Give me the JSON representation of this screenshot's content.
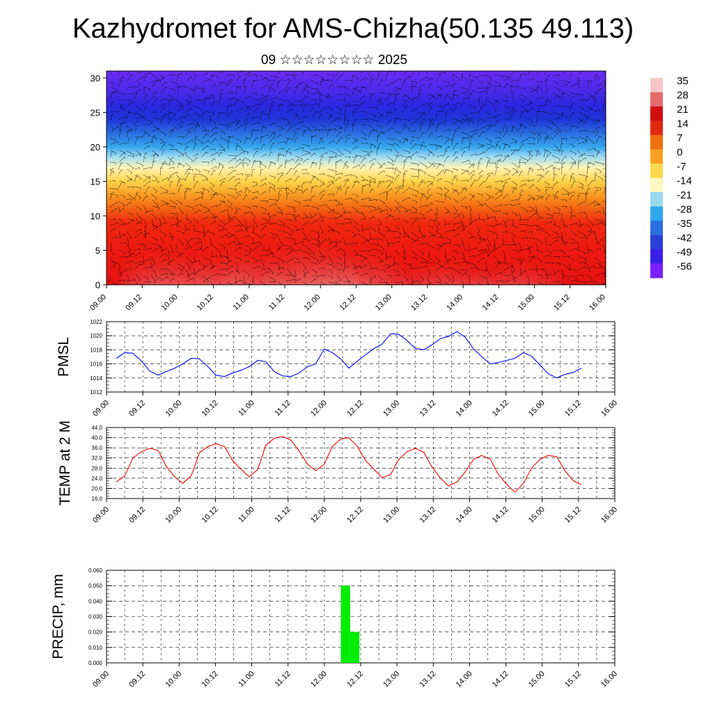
{
  "title": "Kazhydromet for AMS-Chizha(50.135 49.113)",
  "subtitle": "09 ☆☆☆☆☆☆☆☆ 2025",
  "colors": {
    "pmsl": "#0000ff",
    "temp": "#ff0000",
    "precip": "#00ee00",
    "grid": "#000000"
  },
  "chart_data": [
    {
      "type": "heatmap",
      "name": "cross-section",
      "x_tick_labels": [
        "09.00",
        "09.12",
        "10.00",
        "10.12",
        "11.00",
        "11.12",
        "12.00",
        "12.12",
        "13.00",
        "13.12",
        "14.00",
        "14.12",
        "15.00",
        "15.12",
        "16.00"
      ],
      "y_ticks": [
        0,
        5,
        10,
        15,
        20,
        25,
        30
      ],
      "ylim": [
        0,
        31
      ],
      "colorbar_labels": [
        "35",
        "28",
        "21",
        "14",
        "7",
        "0",
        "-7",
        "-14",
        "-21",
        "-28",
        "-35",
        "-42",
        "-49",
        "-56"
      ],
      "colorbar_colors": [
        "#f6c6c6",
        "#e46a6a",
        "#d01010",
        "#e02a10",
        "#f07010",
        "#fba020",
        "#ffd850",
        "#fff6c0",
        "#9ad8f0",
        "#30a8ee",
        "#2a70e0",
        "#2a40d8",
        "#3a20e8",
        "#7a20f8"
      ],
      "vertical_profile": [
        {
          "h": 0,
          "c": "#e61212"
        },
        {
          "h": 5,
          "c": "#ee1a10"
        },
        {
          "h": 9,
          "c": "#f02810"
        },
        {
          "h": 11,
          "c": "#f36212"
        },
        {
          "h": 13,
          "c": "#f89a22"
        },
        {
          "h": 15,
          "c": "#ffd44a"
        },
        {
          "h": 17,
          "c": "#fff3b8"
        },
        {
          "h": 18.5,
          "c": "#a0dcf2"
        },
        {
          "h": 20,
          "c": "#36a6ee"
        },
        {
          "h": 22,
          "c": "#2a6ee0"
        },
        {
          "h": 24,
          "c": "#2034d8"
        },
        {
          "h": 26,
          "c": "#2a28e0"
        },
        {
          "h": 28,
          "c": "#4a2ae8"
        },
        {
          "h": 31,
          "c": "#6a2cf4"
        }
      ],
      "surface_warm_centers_day": [
        0.85,
        1.85,
        2.85,
        3.55,
        4.75,
        5.75
      ],
      "surface_warm_strength": [
        0.8,
        0.85,
        1.0,
        0.8,
        0.6,
        0.55
      ]
    },
    {
      "type": "line",
      "name": "pmsl",
      "ylabel": "PMSL",
      "x_tick_labels": [
        "09.00",
        "09.12",
        "10.00",
        "10.12",
        "11.00",
        "11.12",
        "12.00",
        "12.12",
        "13.00",
        "13.12",
        "14.00",
        "14.12",
        "15.00",
        "15.12",
        "16.00"
      ],
      "y_tick_labels": [
        "1012",
        "1014",
        "1016",
        "1018",
        "1020",
        "1022"
      ],
      "ylim": [
        1012,
        1022
      ],
      "series": [
        {
          "x_days": [
            0.0,
            0.13,
            0.25,
            0.38,
            0.5,
            0.63,
            0.75,
            0.88,
            1.0,
            1.13,
            1.25,
            1.38,
            1.5,
            1.63,
            1.75,
            1.88,
            2.0,
            2.13,
            2.25,
            2.38,
            2.5,
            2.63,
            2.75,
            2.88,
            3.0,
            3.13,
            3.25,
            3.38,
            3.5,
            3.63,
            3.75,
            3.88,
            4.0,
            4.13,
            4.25,
            4.38,
            4.5,
            4.63,
            4.75,
            4.88,
            5.0,
            5.13,
            5.25,
            5.38,
            5.5,
            5.63,
            5.75,
            5.88,
            6.0,
            6.13,
            6.25,
            6.38,
            6.5,
            6.63,
            6.75,
            6.88,
            7.0
          ],
          "values": [
            1016.8,
            1017.6,
            1017.5,
            1016.4,
            1015.0,
            1014.4,
            1014.9,
            1015.4,
            1016.0,
            1016.8,
            1016.7,
            1015.6,
            1014.4,
            1014.2,
            1014.7,
            1015.1,
            1015.6,
            1016.5,
            1016.3,
            1014.9,
            1014.3,
            1014.2,
            1014.7,
            1015.6,
            1016.0,
            1018.1,
            1017.6,
            1016.7,
            1015.4,
            1016.4,
            1017.3,
            1018.2,
            1018.8,
            1020.3,
            1020.2,
            1019.3,
            1018.2,
            1018.0,
            1018.7,
            1019.6,
            1019.9,
            1020.6,
            1019.8,
            1018.1,
            1017.0,
            1016.0,
            1016.2,
            1016.5,
            1016.8,
            1017.6,
            1017.1,
            1015.8,
            1014.6,
            1014.0,
            1014.5,
            1014.8,
            1015.4
          ]
        }
      ]
    },
    {
      "type": "line",
      "name": "temp",
      "ylabel": "TEMP at 2 M",
      "x_tick_labels": [
        "09.00",
        "09.12",
        "10.00",
        "10.12",
        "11.00",
        "11.12",
        "12.00",
        "12.12",
        "13.00",
        "13.12",
        "14.00",
        "14.12",
        "15.00",
        "15.12",
        "16.00"
      ],
      "y_tick_labels": [
        "16.0",
        "20.0",
        "24.0",
        "28.0",
        "32.0",
        "36.0",
        "40.0",
        "44.0"
      ],
      "ylim": [
        16,
        44
      ],
      "series": [
        {
          "x_days": [
            0.0,
            0.13,
            0.25,
            0.38,
            0.5,
            0.63,
            0.75,
            0.88,
            1.0,
            1.13,
            1.25,
            1.38,
            1.5,
            1.63,
            1.75,
            1.88,
            2.0,
            2.13,
            2.25,
            2.38,
            2.5,
            2.63,
            2.75,
            2.88,
            3.0,
            3.13,
            3.25,
            3.38,
            3.5,
            3.63,
            3.75,
            3.88,
            4.0,
            4.13,
            4.25,
            4.38,
            4.5,
            4.63,
            4.75,
            4.88,
            5.0,
            5.13,
            5.25,
            5.38,
            5.5,
            5.63,
            5.75,
            5.88,
            6.0,
            6.13,
            6.25,
            6.38,
            6.5,
            6.63,
            6.75,
            6.88,
            7.0
          ],
          "values": [
            22.5,
            25.0,
            32.0,
            34.5,
            35.8,
            35.0,
            28.8,
            24.5,
            22.0,
            25.0,
            34.0,
            36.5,
            37.6,
            36.5,
            31.0,
            27.5,
            24.5,
            27.5,
            37.0,
            39.8,
            40.5,
            39.0,
            34.8,
            29.5,
            27.0,
            29.5,
            36.5,
            39.5,
            40.0,
            36.5,
            31.0,
            27.5,
            24.2,
            25.5,
            31.5,
            34.5,
            35.8,
            34.2,
            28.5,
            24.0,
            21.0,
            22.5,
            26.5,
            31.5,
            33.0,
            31.5,
            25.5,
            21.5,
            18.5,
            22.0,
            28.0,
            31.5,
            33.0,
            32.5,
            27.0,
            23.0,
            21.5
          ]
        }
      ]
    },
    {
      "type": "bar",
      "name": "precip",
      "ylabel": "PRECIP, mm",
      "x_tick_labels": [
        "09.00",
        "09.12",
        "10.00",
        "10.12",
        "11.00",
        "11.12",
        "12.00",
        "12.12",
        "13.00",
        "13.12",
        "14.00",
        "14.12",
        "15.00",
        "15.12",
        "16.00"
      ],
      "y_tick_labels": [
        "0.000",
        "0.010",
        "0.020",
        "0.030",
        "0.040",
        "0.050",
        "0.060"
      ],
      "ylim": [
        0,
        0.06
      ],
      "bars": [
        {
          "x_start_day": 3.28,
          "x_end_day": 3.41,
          "value": 0.05
        },
        {
          "x_start_day": 3.41,
          "x_end_day": 3.54,
          "value": 0.02
        }
      ]
    }
  ]
}
